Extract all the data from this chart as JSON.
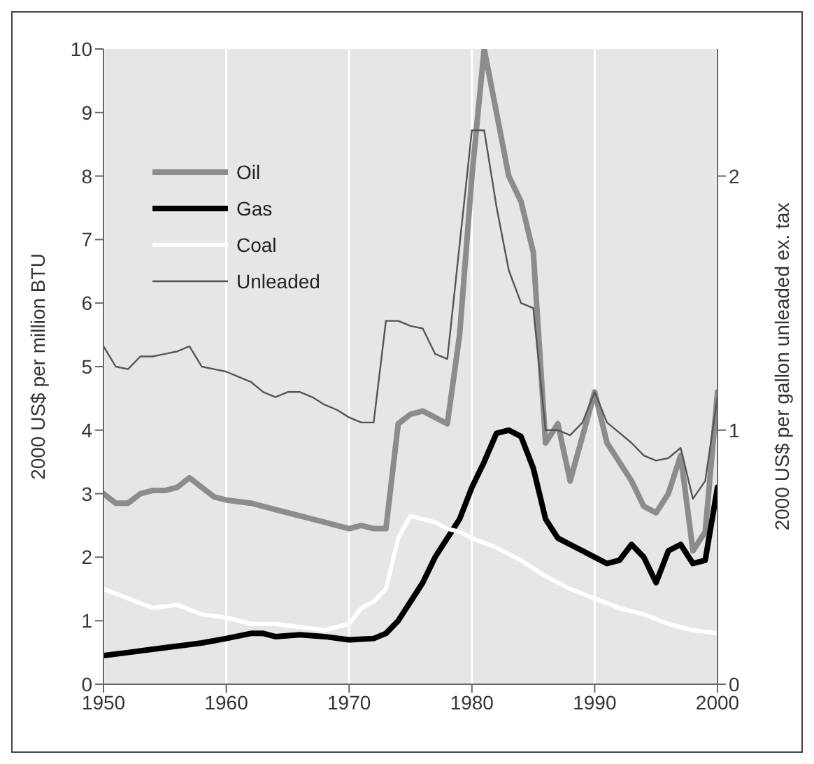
{
  "chart_data": {
    "type": "line",
    "ylabel": "2000 US$ per million BTU",
    "y2label": "2000 US$ per gallon unleaded ex. tax",
    "xlim": [
      1950,
      2000
    ],
    "xticks": [
      1950,
      1960,
      1970,
      1980,
      1990,
      2000
    ],
    "ylim": [
      0,
      10
    ],
    "yticks": [
      0,
      1,
      2,
      3,
      4,
      5,
      6,
      7,
      8,
      9,
      10
    ],
    "y2lim": [
      0,
      2.5
    ],
    "y2ticks": [
      0,
      1,
      2
    ],
    "grid": true,
    "legend": "top left",
    "marker": "none",
    "series": [
      {
        "name": "Oil",
        "color": "#8c8c8c",
        "x": [
          1950,
          1951,
          1952,
          1953,
          1954,
          1955,
          1956,
          1957,
          1958,
          1959,
          1960,
          1962,
          1964,
          1966,
          1968,
          1970,
          1971,
          1972,
          1973,
          1974,
          1975,
          1976,
          1977,
          1978,
          1979,
          1980,
          1981,
          1982,
          1983,
          1984,
          1985,
          1986,
          1987,
          1988,
          1989,
          1990,
          1991,
          1992,
          1993,
          1994,
          1995,
          1996,
          1997,
          1998,
          1999,
          2000
        ],
        "values": [
          3.0,
          2.85,
          2.85,
          3.0,
          3.05,
          3.05,
          3.1,
          3.25,
          3.1,
          2.95,
          2.9,
          2.85,
          2.75,
          2.65,
          2.55,
          2.45,
          2.5,
          2.45,
          2.45,
          4.1,
          4.25,
          4.3,
          4.2,
          4.1,
          5.5,
          8.0,
          10.0,
          9.0,
          8.0,
          7.6,
          6.8,
          3.8,
          4.1,
          3.2,
          3.9,
          4.6,
          3.8,
          3.5,
          3.2,
          2.8,
          2.7,
          3.0,
          3.6,
          2.1,
          2.4,
          4.6
        ]
      },
      {
        "name": "Gas",
        "color": "#000000",
        "x": [
          1950,
          1952,
          1954,
          1956,
          1958,
          1960,
          1962,
          1963,
          1964,
          1966,
          1968,
          1970,
          1972,
          1973,
          1974,
          1975,
          1976,
          1977,
          1978,
          1979,
          1980,
          1981,
          1982,
          1983,
          1984,
          1985,
          1986,
          1987,
          1988,
          1989,
          1990,
          1991,
          1992,
          1993,
          1994,
          1995,
          1996,
          1997,
          1998,
          1999,
          2000
        ],
        "values": [
          0.45,
          0.5,
          0.55,
          0.6,
          0.65,
          0.72,
          0.8,
          0.8,
          0.75,
          0.78,
          0.75,
          0.7,
          0.72,
          0.8,
          1.0,
          1.3,
          1.6,
          2.0,
          2.3,
          2.6,
          3.1,
          3.5,
          3.95,
          4.0,
          3.9,
          3.4,
          2.6,
          2.3,
          2.2,
          2.1,
          2.0,
          1.9,
          1.95,
          2.2,
          2.0,
          1.6,
          2.1,
          2.2,
          1.9,
          1.95,
          3.1
        ]
      },
      {
        "name": "Coal",
        "color": "#ffffff",
        "x": [
          1950,
          1952,
          1954,
          1956,
          1958,
          1960,
          1962,
          1964,
          1966,
          1968,
          1970,
          1971,
          1972,
          1973,
          1974,
          1975,
          1976,
          1977,
          1978,
          1979,
          1980,
          1982,
          1984,
          1986,
          1988,
          1990,
          1992,
          1994,
          1996,
          1998,
          2000
        ],
        "values": [
          1.5,
          1.35,
          1.2,
          1.25,
          1.1,
          1.05,
          0.95,
          0.95,
          0.9,
          0.85,
          0.95,
          1.2,
          1.3,
          1.5,
          2.3,
          2.65,
          2.6,
          2.55,
          2.45,
          2.4,
          2.3,
          2.15,
          1.95,
          1.7,
          1.5,
          1.35,
          1.2,
          1.1,
          0.95,
          0.85,
          0.8
        ]
      },
      {
        "name": "Unleaded",
        "color": "#555555",
        "axis": "y2",
        "x": [
          1950,
          1951,
          1952,
          1953,
          1954,
          1955,
          1956,
          1957,
          1958,
          1959,
          1960,
          1961,
          1962,
          1963,
          1964,
          1965,
          1966,
          1967,
          1968,
          1969,
          1970,
          1971,
          1972,
          1973,
          1974,
          1975,
          1976,
          1977,
          1978,
          1979,
          1980,
          1981,
          1982,
          1983,
          1984,
          1985,
          1986,
          1987,
          1988,
          1989,
          1990,
          1991,
          1992,
          1993,
          1994,
          1995,
          1996,
          1997,
          1998,
          1999,
          2000
        ],
        "values": [
          1.33,
          1.25,
          1.24,
          1.29,
          1.29,
          1.3,
          1.31,
          1.33,
          1.25,
          1.24,
          1.23,
          1.21,
          1.19,
          1.15,
          1.13,
          1.15,
          1.15,
          1.13,
          1.1,
          1.08,
          1.05,
          1.03,
          1.03,
          1.43,
          1.43,
          1.41,
          1.4,
          1.3,
          1.28,
          1.73,
          2.18,
          2.18,
          1.88,
          1.63,
          1.5,
          1.48,
          1.0,
          1.0,
          0.98,
          1.03,
          1.15,
          1.03,
          0.99,
          0.95,
          0.9,
          0.88,
          0.89,
          0.93,
          0.73,
          0.8,
          1.13
        ]
      }
    ]
  }
}
